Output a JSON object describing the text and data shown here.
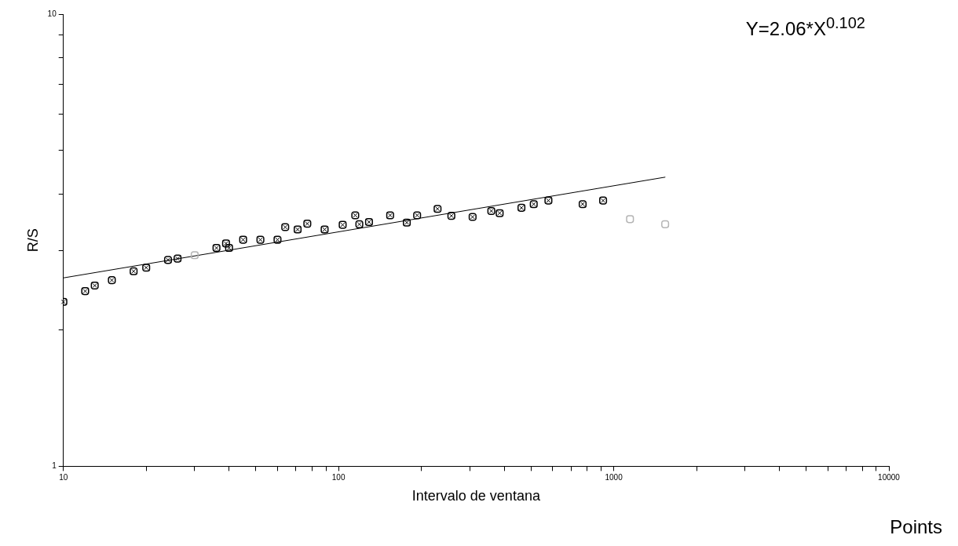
{
  "chart_data": {
    "type": "scatter",
    "xlabel": "Intervalo de ventana",
    "ylabel": "R/S",
    "annotations": [
      "Y=2.06*X$^{0.102}$",
      "Points"
    ],
    "log": "xy",
    "grid": false,
    "legend": false,
    "marker": "square",
    "xlim": [
      10,
      10000
    ],
    "ylim": [
      1,
      10
    ],
    "xticks": [
      10,
      {
        "value": 20,
        "label": null
      },
      {
        "value": 30,
        "label": null
      },
      {
        "value": 40,
        "label": null
      },
      {
        "value": 50,
        "label": null
      },
      {
        "value": 60,
        "label": null
      },
      {
        "value": 70,
        "label": null
      },
      {
        "value": 80,
        "label": null
      },
      {
        "value": 90,
        "label": null
      },
      100,
      {
        "value": 200,
        "label": null
      },
      {
        "value": 300,
        "label": null
      },
      {
        "value": 400,
        "label": null
      },
      {
        "value": 500,
        "label": null
      },
      {
        "value": 600,
        "label": null
      },
      {
        "value": 700,
        "label": null
      },
      {
        "value": 800,
        "label": null
      },
      {
        "value": 900,
        "label": null
      },
      1000,
      {
        "value": 2000,
        "label": null
      },
      {
        "value": 3000,
        "label": null
      },
      {
        "value": 4000,
        "label": null
      },
      {
        "value": 5000,
        "label": null
      },
      {
        "value": 6000,
        "label": null
      },
      {
        "value": 7000,
        "label": null
      },
      {
        "value": 8000,
        "label": null
      },
      {
        "value": 9000,
        "label": null
      },
      10000
    ],
    "yticks": [
      1,
      {
        "value": 2,
        "label": null
      },
      {
        "value": 3,
        "label": null
      },
      {
        "value": 4,
        "label": null
      },
      {
        "value": 5,
        "label": null
      },
      {
        "value": 6,
        "label": null
      },
      {
        "value": 7,
        "label": null
      },
      {
        "value": 8,
        "label": null
      },
      {
        "value": 9,
        "label": null
      },
      10
    ],
    "series": [
      {
        "color": "#000000",
        "x": [
          10,
          12,
          13,
          15,
          18,
          20,
          24,
          26,
          36,
          39,
          40,
          45,
          52,
          60,
          64,
          71,
          77,
          89,
          103.5,
          115,
          119,
          129,
          154,
          177,
          193,
          229,
          257,
          307,
          359,
          385,
          462,
          512,
          579,
          771,
          915
        ],
        "values": [
          2.31,
          2.44,
          2.51,
          2.58,
          2.7,
          2.75,
          2.86,
          2.88,
          3.04,
          3.11,
          3.04,
          3.17,
          3.17,
          3.17,
          3.38,
          3.34,
          3.44,
          3.34,
          3.42,
          3.59,
          3.43,
          3.47,
          3.59,
          3.46,
          3.59,
          3.71,
          3.58,
          3.56,
          3.67,
          3.63,
          3.73,
          3.8,
          3.87,
          3.8,
          3.87
        ]
      },
      {
        "color": "#b4b4b4",
        "x": [
          30,
          1146,
          1538
        ],
        "values": [
          2.93,
          3.52,
          3.43
        ]
      },
      {
        "type": "line",
        "color": "#000000",
        "marker": "none",
        "x": [
          10,
          1540
        ],
        "values": [
          2.61,
          4.36
        ]
      }
    ]
  }
}
